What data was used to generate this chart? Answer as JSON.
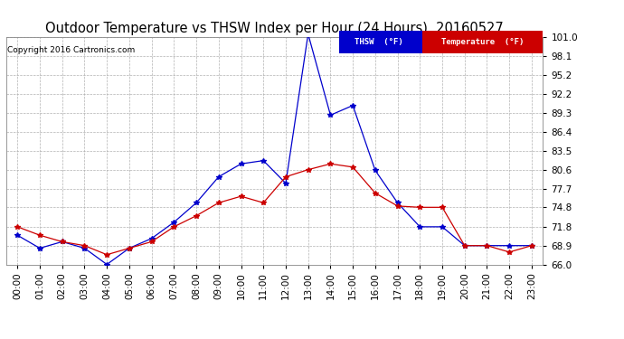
{
  "title": "Outdoor Temperature vs THSW Index per Hour (24 Hours)  20160527",
  "copyright": "Copyright 2016 Cartronics.com",
  "hours": [
    "00:00",
    "01:00",
    "02:00",
    "03:00",
    "04:00",
    "05:00",
    "06:00",
    "07:00",
    "08:00",
    "09:00",
    "10:00",
    "11:00",
    "12:00",
    "13:00",
    "14:00",
    "15:00",
    "16:00",
    "17:00",
    "18:00",
    "19:00",
    "20:00",
    "21:00",
    "22:00",
    "23:00"
  ],
  "thsw": [
    70.5,
    68.5,
    69.5,
    68.5,
    66.0,
    68.5,
    70.0,
    72.5,
    75.5,
    79.5,
    81.5,
    82.0,
    78.5,
    101.5,
    89.0,
    90.5,
    80.5,
    75.5,
    71.8,
    71.8,
    68.9,
    68.9,
    68.9,
    68.9
  ],
  "temp": [
    71.8,
    70.5,
    69.5,
    68.9,
    67.5,
    68.5,
    69.5,
    71.8,
    73.5,
    75.5,
    76.5,
    75.5,
    79.5,
    80.6,
    81.5,
    81.0,
    77.0,
    75.0,
    74.8,
    74.8,
    68.9,
    68.9,
    67.9,
    68.9
  ],
  "ylim": [
    66.0,
    101.0
  ],
  "ytick_values": [
    66.0,
    68.9,
    71.8,
    74.8,
    77.7,
    80.6,
    83.5,
    86.4,
    89.3,
    92.2,
    95.2,
    98.1,
    101.0
  ],
  "ytick_labels": [
    "66.0",
    "68.9",
    "71.8",
    "74.8",
    "77.7",
    "80.6",
    "83.5",
    "86.4",
    "89.3",
    "92.2",
    "95.2",
    "98.1",
    "101.0"
  ],
  "thsw_color": "#0000cc",
  "temp_color": "#cc0000",
  "background_color": "#ffffff",
  "grid_color": "#aaaaaa",
  "title_fontsize": 10.5,
  "copyright_fontsize": 6.5,
  "tick_fontsize": 7.5,
  "legend_thsw_label": "THSW  (°F)",
  "legend_temp_label": "Temperature  (°F)"
}
